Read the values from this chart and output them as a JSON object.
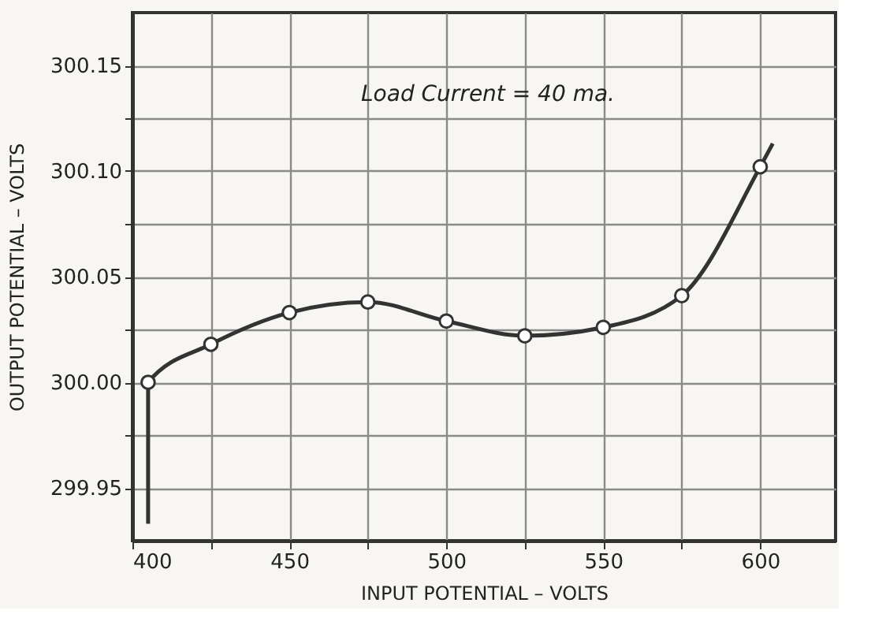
{
  "chart_data": {
    "type": "line",
    "xlabel": "INPUT  POTENTIAL – VOLTS",
    "ylabel": "OUTPUT  POTENTIAL  –  VOLTS",
    "annotations": [
      "Load  Current = 40 ma."
    ],
    "series": [
      {
        "type": "line",
        "color": "#333333",
        "marker": "none",
        "line_style": "solid",
        "x": [
          405,
          405,
          425,
          450,
          475,
          500,
          525,
          550,
          575,
          600,
          604
        ],
        "values": [
          299.933,
          300.0,
          300.018,
          300.033,
          300.038,
          300.029,
          300.022,
          300.026,
          300.041,
          300.102,
          300.113
        ]
      },
      {
        "type": "scatter",
        "color": "#333333",
        "marker": "circle",
        "x": [
          405,
          425,
          450,
          475,
          500,
          525,
          550,
          575,
          600
        ],
        "values": [
          300.0,
          300.018,
          300.033,
          300.038,
          300.029,
          300.022,
          300.026,
          300.041,
          300.102
        ]
      }
    ],
    "xlim": [
      400,
      624
    ],
    "ylim": [
      299.925,
      300.175
    ],
    "xticks": [
      400,
      {
        "value": 425,
        "label": null
      },
      450,
      {
        "value": 475,
        "label": null
      },
      500,
      {
        "value": 525,
        "label": null
      },
      550,
      {
        "value": 575,
        "label": null
      },
      600
    ],
    "yticks": [
      {
        "value": 299.95,
        "label": "299.95"
      },
      {
        "value": 299.975,
        "label": null
      },
      {
        "value": 300.0,
        "label": "300.00"
      },
      {
        "value": 300.025,
        "label": null
      },
      {
        "value": 300.05,
        "label": "300.05"
      },
      {
        "value": 300.075,
        "label": null
      },
      {
        "value": 300.1,
        "label": "300.10"
      },
      {
        "value": 300.125,
        "label": null
      },
      {
        "value": 300.15,
        "label": "300.15"
      }
    ],
    "grid": true
  }
}
